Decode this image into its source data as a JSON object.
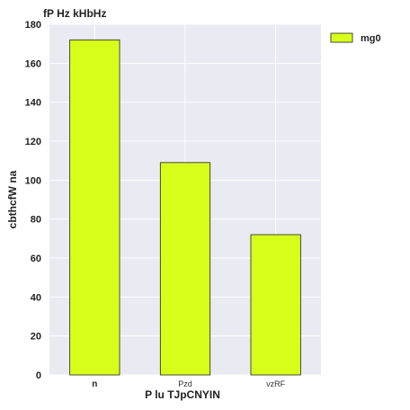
{
  "chart_data": {
    "type": "bar",
    "title": "fP  Hz  kHbHz",
    "xlabel": "P lu TJpCNYIN",
    "ylabel": "cbthcfW na",
    "categories": [
      "n",
      "Pzd",
      "vzRF"
    ],
    "series": [
      {
        "name": "mg0",
        "values": [
          172,
          109,
          72
        ],
        "color": "#d8ff1a"
      }
    ],
    "ylim": [
      0,
      180
    ],
    "yticks": [
      0,
      20,
      40,
      60,
      80,
      100,
      120,
      140,
      160,
      180
    ],
    "grid": true,
    "legend_position": "upper right outside",
    "colors": {
      "plot_background": "#eaeaf2",
      "grid": "#ffffff",
      "bar_edge": "#222222"
    }
  }
}
